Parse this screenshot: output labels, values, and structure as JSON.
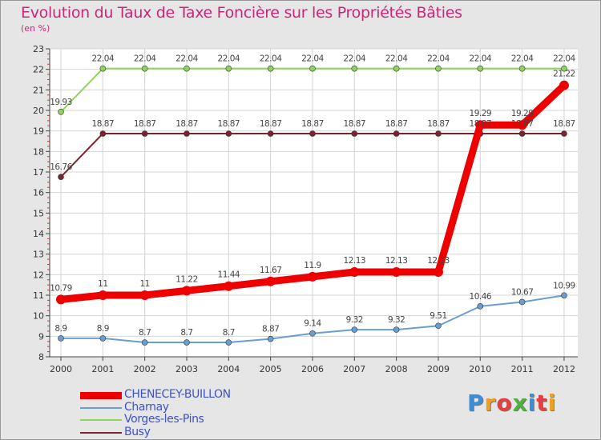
{
  "title": "Evolution du Taux de Taxe Foncière sur les Propriétés Bâties",
  "subtitle": "(en %)",
  "logo": "Proxiti",
  "chart_data": {
    "type": "line",
    "title": "Evolution du Taux de Taxe Foncière sur les Propriétés Bâties",
    "ylabel": "(en %)",
    "x": [
      "2000",
      "2001",
      "2002",
      "2003",
      "2004",
      "2005",
      "2006",
      "2007",
      "2008",
      "2009",
      "2010",
      "2011",
      "2012"
    ],
    "ylim": [
      8,
      23
    ],
    "yticks": [
      8,
      9,
      10,
      11,
      12,
      13,
      14,
      15,
      16,
      17,
      18,
      19,
      20,
      21,
      22,
      23
    ],
    "grid": true,
    "legend_position": "bottom-left",
    "series": [
      {
        "name": "Vorges-les-Pins",
        "color": "#8ed65b",
        "width": 2,
        "marker": 3.5,
        "values": [
          19.93,
          22.04,
          22.04,
          22.04,
          22.04,
          22.04,
          22.04,
          22.04,
          22.04,
          22.04,
          22.04,
          22.04,
          22.04
        ],
        "labels": [
          "19.93",
          "22.04",
          "22.04",
          "22.04",
          "22.04",
          "22.04",
          "22.04",
          "22.04",
          "22.04",
          "22.04",
          "22.04",
          "22.04",
          "22.04"
        ]
      },
      {
        "name": "Busy",
        "color": "#7b2330",
        "width": 2,
        "marker": 3.5,
        "values": [
          16.76,
          18.87,
          18.87,
          18.87,
          18.87,
          18.87,
          18.87,
          18.87,
          18.87,
          18.87,
          18.87,
          18.87,
          18.87
        ],
        "labels": [
          "16.76",
          "18.87",
          "18.87",
          "18.87",
          "18.87",
          "18.87",
          "18.87",
          "18.87",
          "18.87",
          "18.87",
          "18.87",
          "18.87",
          "18.87"
        ]
      },
      {
        "name": "Charnay",
        "color": "#6a9ed0",
        "width": 2,
        "marker": 3.5,
        "values": [
          8.9,
          8.9,
          8.7,
          8.7,
          8.7,
          8.87,
          9.14,
          9.32,
          9.32,
          9.51,
          10.46,
          10.67,
          10.99
        ],
        "labels": [
          "8.9",
          "8.9",
          "8.7",
          "8.7",
          "8.7",
          "8.87",
          "9.14",
          "9.32",
          "9.32",
          "9.51",
          "10.46",
          "10.67",
          "10.99"
        ]
      },
      {
        "name": "CHENECEY-BUILLON",
        "color": "#ee0000",
        "width": 9,
        "marker": 6,
        "values": [
          10.79,
          11,
          11,
          11.22,
          11.44,
          11.67,
          11.9,
          12.13,
          12.13,
          12.13,
          19.29,
          19.29,
          21.22
        ],
        "labels": [
          "10.79",
          "11",
          "11",
          "11.22",
          "11.44",
          "11.67",
          "11.9",
          "12.13",
          "12.13",
          "12.13",
          "19.29",
          "19.29",
          "21.22"
        ]
      }
    ],
    "legend": [
      {
        "name": "CHENECEY-BUILLON",
        "color": "#ee0000",
        "width": 9
      },
      {
        "name": "Charnay",
        "color": "#6a9ed0",
        "width": 2
      },
      {
        "name": "Vorges-les-Pins",
        "color": "#8ed65b",
        "width": 2
      },
      {
        "name": "Busy",
        "color": "#7b2330",
        "width": 2
      }
    ]
  }
}
